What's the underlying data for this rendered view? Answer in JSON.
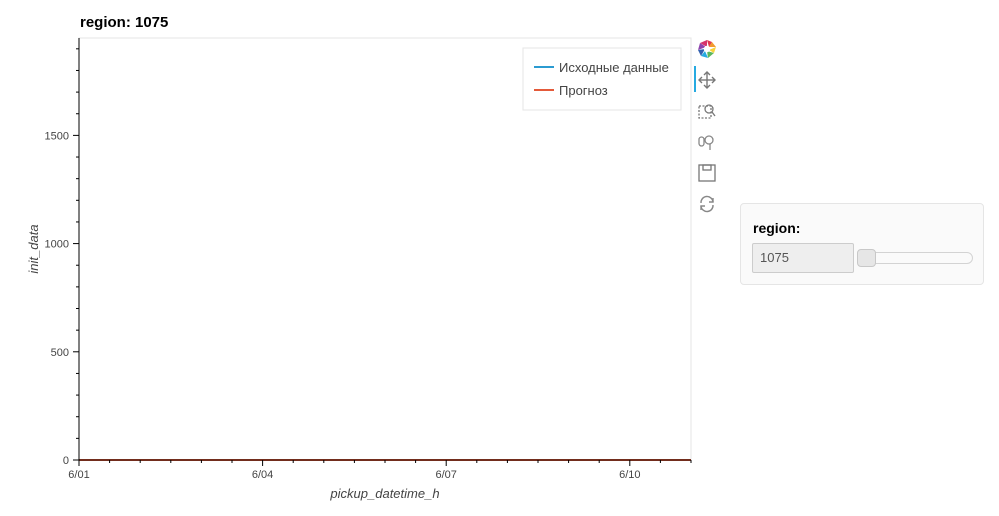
{
  "plot": {
    "title": "region: 1075"
  },
  "toolbar": {
    "tools": [
      "bokeh-logo",
      "pan",
      "box-zoom",
      "wheel-zoom",
      "save",
      "reset"
    ]
  },
  "widget": {
    "title": "region:",
    "value": "1075",
    "slider_fraction": 0
  },
  "colors": {
    "series_1": "#2b9bd1",
    "series_2": "#e45a3a"
  },
  "chart_data": {
    "type": "line",
    "title": "region: 1075",
    "xlabel": "pickup_datetime_h",
    "ylabel": "init_data",
    "x_ticks": [
      "6/01",
      "6/04",
      "6/07",
      "6/10"
    ],
    "x_tick_days": [
      1,
      4,
      7,
      10
    ],
    "xlim_days": [
      1,
      11
    ],
    "y_ticks": [
      0,
      500,
      1000,
      1500
    ],
    "ylim": [
      0,
      1950
    ],
    "legend_position": "top-right",
    "grid": false,
    "series": [
      {
        "name": "Исходные данные",
        "x_days": [
          1,
          2,
          3,
          4,
          5,
          6,
          7,
          8,
          9,
          10,
          11
        ],
        "values": [
          0,
          0,
          0,
          0,
          0,
          0,
          0,
          0,
          0,
          0,
          0
        ]
      },
      {
        "name": "Прогноз",
        "x_days": [
          1,
          2,
          3,
          4,
          5,
          6,
          7,
          8,
          9,
          10,
          11
        ],
        "values": [
          0,
          0,
          0,
          0,
          0,
          0,
          0,
          0,
          0,
          0,
          0
        ]
      }
    ]
  }
}
